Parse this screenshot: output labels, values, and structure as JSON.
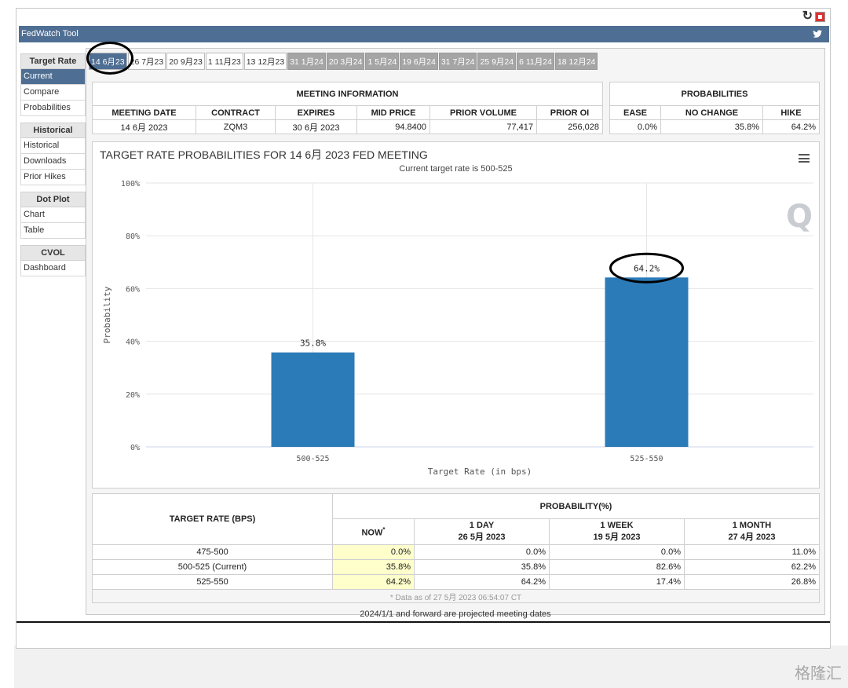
{
  "app": {
    "title": "FedWatch Tool"
  },
  "sidebar": {
    "groups": [
      {
        "title": "Target Rate",
        "items": [
          "Current",
          "Compare",
          "Probabilities"
        ]
      },
      {
        "title": "Historical",
        "items": [
          "Historical",
          "Downloads",
          "Prior Hikes"
        ]
      },
      {
        "title": "Dot Plot",
        "items": [
          "Chart",
          "Table"
        ]
      },
      {
        "title": "CVOL",
        "items": [
          "Dashboard"
        ]
      }
    ]
  },
  "tabs": [
    "14 6月23",
    "26 7月23",
    "20 9月23",
    "1 11月23",
    "13 12月23",
    "31 1月24",
    "20 3月24",
    "1 5月24",
    "19 6月24",
    "31 7月24",
    "25 9月24",
    "6 11月24",
    "18 12月24"
  ],
  "meeting": {
    "section_title": "MEETING INFORMATION",
    "prob_title": "PROBABILITIES",
    "headers": [
      "MEETING DATE",
      "CONTRACT",
      "EXPIRES",
      "MID PRICE",
      "PRIOR VOLUME",
      "PRIOR OI"
    ],
    "values": [
      "14 6月 2023",
      "ZQM3",
      "30 6月 2023",
      "94.8400",
      "77,417",
      "256,028"
    ],
    "prob_headers": [
      "EASE",
      "NO CHANGE",
      "HIKE"
    ],
    "prob_values": [
      "0.0%",
      "35.8%",
      "64.2%"
    ]
  },
  "chart_data": {
    "type": "bar",
    "title": "TARGET RATE PROBABILITIES FOR 14 6月 2023 FED MEETING",
    "subtitle": "Current target rate is 500-525",
    "xlabel": "Target Rate (in bps)",
    "ylabel": "Probability",
    "categories": [
      "500-525",
      "525-550"
    ],
    "values": [
      35.8,
      64.2
    ],
    "data_labels": [
      "35.8%",
      "64.2%"
    ],
    "ylim": [
      0,
      100
    ],
    "yticks": [
      "0%",
      "20%",
      "40%",
      "60%",
      "80%",
      "100%"
    ],
    "grid": true,
    "color": "#2b7bb9"
  },
  "prob_table": {
    "target_header": "TARGET RATE (BPS)",
    "prob_header": "PROBABILITY(%)",
    "columns": [
      {
        "l1": "NOW",
        "l2": "",
        "star": "*"
      },
      {
        "l1": "1 DAY",
        "l2": "26 5月 2023"
      },
      {
        "l1": "1 WEEK",
        "l2": "19 5月 2023"
      },
      {
        "l1": "1 MONTH",
        "l2": "27 4月 2023"
      }
    ],
    "rows": [
      {
        "rate": "475-500",
        "vals": [
          "0.0%",
          "0.0%",
          "0.0%",
          "11.0%"
        ]
      },
      {
        "rate": "500-525 (Current)",
        "vals": [
          "35.8%",
          "35.8%",
          "82.6%",
          "62.2%"
        ]
      },
      {
        "rate": "525-550",
        "vals": [
          "64.2%",
          "64.2%",
          "17.4%",
          "26.8%"
        ]
      }
    ],
    "note": "* Data as of 27 5月 2023 06:54:07 CT"
  },
  "projection_note": "2024/1/1 and forward are projected meeting dates",
  "watermark": {
    "chart": "Q",
    "corner": "格隆汇"
  }
}
